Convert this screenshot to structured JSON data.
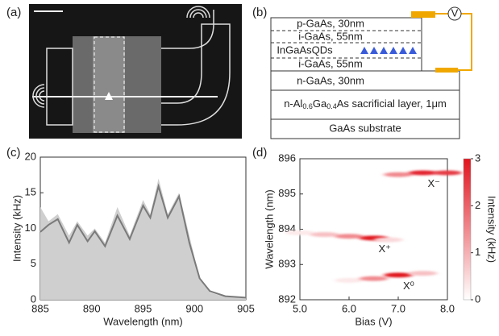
{
  "panel_labels": [
    "(a)",
    "(b)",
    "(c)",
    "(d)"
  ],
  "diagram_b": {
    "layers": [
      "p-GaAs, 30nm",
      "i-GaAs, 55nm",
      "InGaAsQDs",
      "i-GaAs, 55nm",
      "n-GaAs, 30nm"
    ],
    "sacrificial_parts": [
      "n-Al",
      "0.6",
      "Ga",
      "0.4",
      "As sacrificial layer, 1μm"
    ],
    "substrate": "GaAs substrate",
    "meter": "V"
  },
  "chart_data": [
    {
      "type": "line",
      "xlabel": "Wavelength (nm)",
      "ylabel": "Intensity (kHz)",
      "x": [
        885,
        885.8,
        886.7,
        887.8,
        888.6,
        889.6,
        890.3,
        891.3,
        892.5,
        893.7,
        895,
        895.7,
        896.5,
        897.4,
        898.5,
        899.5,
        900.5,
        901.5,
        903,
        905
      ],
      "series": [
        {
          "color": "#cfcfcf",
          "fill": true,
          "values": [
            13,
            11,
            12,
            9,
            11,
            9,
            10,
            8,
            13,
            9,
            14,
            12,
            17,
            12,
            15,
            9,
            3,
            1,
            0.4,
            0.2
          ]
        },
        {
          "color": "#7a7a7a",
          "fill": false,
          "values": [
            9.5,
            10.5,
            11.3,
            8,
            10.5,
            8.2,
            9.6,
            7.5,
            11.8,
            8.5,
            13.2,
            11.5,
            15.9,
            11.5,
            14.5,
            8,
            3,
            1.2,
            0.5,
            0.3
          ]
        }
      ],
      "xlim": [
        885,
        905
      ],
      "xticks": [
        885,
        890,
        895,
        900,
        905
      ],
      "ylim": [
        0,
        20
      ],
      "yticks": [
        0,
        5,
        10,
        15,
        20
      ]
    },
    {
      "type": "heatmap",
      "xlabel": "Bias (V)",
      "ylabel": "Wavelength (nm)",
      "colorbar_label": "Intensity (kHz)",
      "series": [
        {
          "name": "X⁰",
          "x": [
            6.0,
            6.5,
            7.0,
            7.5
          ],
          "y": [
            892.55,
            892.6,
            892.7,
            892.75
          ],
          "values": [
            0.3,
            1.5,
            3,
            0.8
          ]
        },
        {
          "name": "X⁺",
          "x": [
            5.0,
            5.5,
            6.0,
            6.5,
            6.8
          ],
          "y": [
            893.9,
            893.85,
            893.8,
            893.75,
            893.7
          ],
          "values": [
            0.3,
            0.8,
            1.5,
            3,
            0.5
          ]
        },
        {
          "name": "X⁻",
          "x": [
            7.0,
            7.5,
            8.0
          ],
          "y": [
            895.55,
            895.6,
            895.6
          ],
          "values": [
            1.5,
            2.8,
            2.5
          ]
        }
      ],
      "colormap": [
        "#ffffff",
        "#e0141e"
      ],
      "xlim": [
        5,
        8
      ],
      "xticks": [
        {
          "value": 5,
          "label": "5.0"
        },
        {
          "value": 6,
          "label": "6.0"
        },
        {
          "value": 7,
          "label": "7.0"
        },
        {
          "value": 8,
          "label": "8.0"
        }
      ],
      "ylim": [
        892,
        896
      ],
      "yticks": [
        892,
        893,
        894,
        895,
        896
      ],
      "clim": [
        0,
        3
      ],
      "cticks": [
        0,
        1,
        2,
        3
      ]
    }
  ]
}
